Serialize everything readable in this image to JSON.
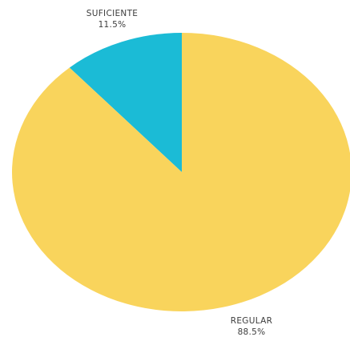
{
  "chart_data": {
    "type": "pie",
    "slices": [
      {
        "label": "SUFICIENTE",
        "value": 11.5,
        "value_label": "11.5%",
        "color": "#1BBBD6"
      },
      {
        "label": "REGULAR",
        "value": 88.5,
        "value_label": "88.5%",
        "color": "#F9D45C"
      }
    ],
    "start": "12 o'clock",
    "direction": "counterclockwise",
    "legend": "none",
    "title": ""
  }
}
